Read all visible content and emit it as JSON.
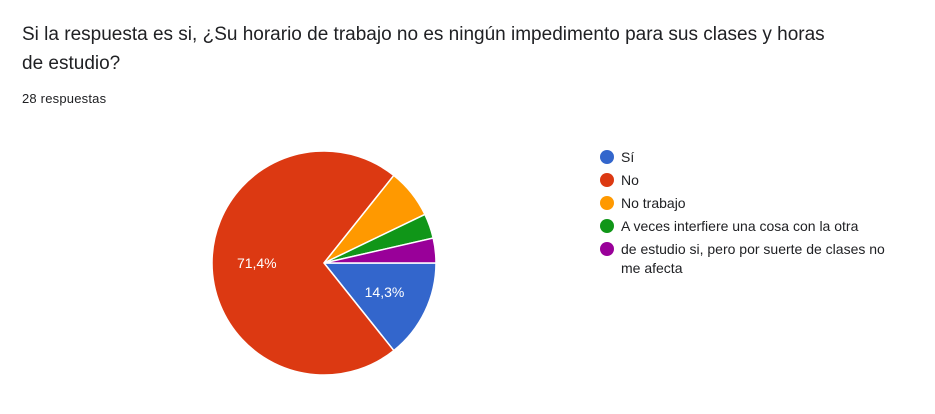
{
  "question": "Si la respuesta es si, ¿Su horario de trabajo no es ningún impedimento para sus clases y horas de estudio?",
  "responses": "28 respuestas",
  "chart_data": {
    "type": "pie",
    "total": 28,
    "slices": [
      {
        "label": "Sí",
        "value": 4,
        "percent_label": "14,3%",
        "color": "#3366cc"
      },
      {
        "label": "No",
        "value": 20,
        "percent_label": "71,4%",
        "color": "#dc3912"
      },
      {
        "label": "No trabajo",
        "value": 2,
        "percent_label": "",
        "color": "#ff9900"
      },
      {
        "label": "A veces interfiere una cosa con la otra",
        "value": 1,
        "percent_label": "",
        "color": "#109618"
      },
      {
        "label": "de estudio si, pero por suerte de clases no me afecta",
        "value": 1,
        "percent_label": "",
        "color": "#990099"
      }
    ],
    "legend_position": "right"
  }
}
